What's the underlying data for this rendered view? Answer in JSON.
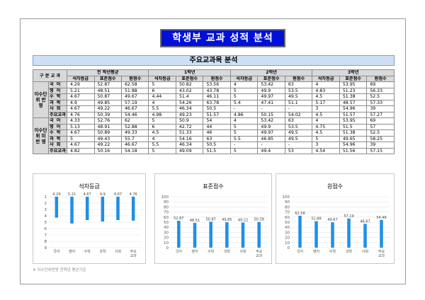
{
  "title": "학생부 교과 성적 분석",
  "subtitle": "주요교과목 분석",
  "header": {
    "corner": "구  분  교  과",
    "groups": [
      "전 학년평균",
      "1학년",
      "2학년",
      "3학년"
    ],
    "cols": [
      "석차등급",
      "표준점수",
      "원점수"
    ]
  },
  "sections": [
    {
      "label": "이수단위 반  영",
      "rows": [
        {
          "subject": "국어",
          "vals": [
            "4.29",
            "52.87",
            "62.58",
            "5",
            "50.82",
            "53.56",
            "4",
            "53.42",
            "63",
            "4",
            "53.95",
            "69"
          ]
        },
        {
          "subject": "영어",
          "vals": [
            "5.21",
            "48.51",
            "51.88",
            "6",
            "43.02",
            "43.78",
            "5",
            "49.9",
            "53.5",
            "4.83",
            "51.23",
            "56.33"
          ]
        },
        {
          "subject": "수학",
          "vals": [
            "4.67",
            "50.87",
            "49.67",
            "4.44",
            "51.4",
            "46.11",
            "5",
            "49.97",
            "49.5",
            "4.5",
            "51.38",
            "52.5"
          ]
        },
        {
          "subject": "과학",
          "vals": [
            "4.9",
            "49.85",
            "57.19",
            "4",
            "54.26",
            "63.78",
            "5.4",
            "47.41",
            "51.1",
            "5.17",
            "48.57",
            "57.33"
          ]
        },
        {
          "subject": "사회",
          "vals": [
            "4.67",
            "49.22",
            "46.67",
            "5.5",
            "46.34",
            "50.5",
            "-",
            "-",
            "-",
            "3",
            "54.96",
            "39"
          ]
        },
        {
          "subject": "주요교과",
          "vals": [
            "4.76",
            "50.39",
            "54.46",
            "4.98",
            "49.23",
            "51.57",
            "4.86",
            "50.15",
            "54.02",
            "4.5",
            "51.57",
            "57.27"
          ]
        }
      ]
    },
    {
      "label": "이수단위 미 반 영",
      "rows": [
        {
          "subject": "국어",
          "vals": [
            "4.33",
            "52.76",
            "62",
            "5",
            "50.9",
            "54",
            "4",
            "53.42",
            "63",
            "4",
            "53.95",
            "69"
          ]
        },
        {
          "subject": "영어",
          "vals": [
            "5.13",
            "48.91",
            "52.88",
            "6",
            "42.72",
            "44",
            "5",
            "49.9",
            "53.5",
            "4.75",
            "51.5",
            "57"
          ]
        },
        {
          "subject": "수학",
          "vals": [
            "4.67",
            "50.89",
            "49.33",
            "4.5",
            "51.33",
            "46",
            "5",
            "49.97",
            "49.5",
            "4.5",
            "51.38",
            "52.5"
          ]
        },
        {
          "subject": "과학",
          "vals": [
            "5",
            "49.43",
            "55.7",
            "4",
            "54.16",
            "63",
            "5.5",
            "46.85",
            "49.5",
            "5",
            "49.65",
            "58.25"
          ]
        },
        {
          "subject": "사회",
          "vals": [
            "4.67",
            "49.22",
            "46.67",
            "5.5",
            "46.34",
            "50.5",
            "-",
            "-",
            "-",
            "3",
            "54.96",
            "39"
          ]
        },
        {
          "subject": "주요교과",
          "vals": [
            "4.82",
            "50.16",
            "54.18",
            "5",
            "49.09",
            "51.5",
            "5",
            "49.4",
            "53",
            "4.54",
            "51.56",
            "57.15"
          ]
        }
      ]
    }
  ],
  "chart_data": [
    {
      "type": "bar",
      "title": "석차등급",
      "categories": [
        "국어",
        "영어",
        "수학",
        "과학",
        "사회",
        "주요교과"
      ],
      "values": [
        4.29,
        5.21,
        4.67,
        4.9,
        4.67,
        4.76
      ],
      "ylim": [
        9,
        1
      ],
      "yticks": [
        1,
        2,
        3,
        4,
        5,
        6,
        7,
        8,
        9
      ],
      "data_labels": [
        "4.29",
        "5.21",
        "4.67",
        "4.9",
        "4.67",
        "4.76"
      ],
      "inverted": true,
      "color": "#1f8fe6"
    },
    {
      "type": "bar",
      "title": "표준점수",
      "categories": [
        "국어",
        "영어",
        "수학",
        "과학",
        "사회",
        "주요교과"
      ],
      "values": [
        52.87,
        48.51,
        50.87,
        49.85,
        49.22,
        50.39
      ],
      "ylim": [
        0,
        100
      ],
      "yticks": [
        0,
        10,
        20,
        30,
        40,
        50,
        60,
        70,
        80,
        90,
        100
      ],
      "data_labels": [
        "52.87",
        "48.51",
        "50.87",
        "49.85",
        "49.22",
        "50.39"
      ],
      "color": "#1f8fe6"
    },
    {
      "type": "bar",
      "title": "원점수",
      "categories": [
        "국어",
        "영어",
        "수학",
        "과학",
        "사회",
        "주요교과"
      ],
      "values": [
        62.58,
        51.88,
        49.67,
        57.19,
        46.67,
        54.46
      ],
      "ylim": [
        0,
        100
      ],
      "yticks": [
        0,
        10,
        20,
        30,
        40,
        50,
        60,
        70,
        80,
        90,
        100
      ],
      "data_labels": [
        "62.58",
        "51.88",
        "49.67",
        "57.19",
        "46.67",
        "54.46"
      ],
      "color": "#1f8fe6"
    }
  ],
  "footnote": "※ 이수단위반영 전학년 평균기준"
}
